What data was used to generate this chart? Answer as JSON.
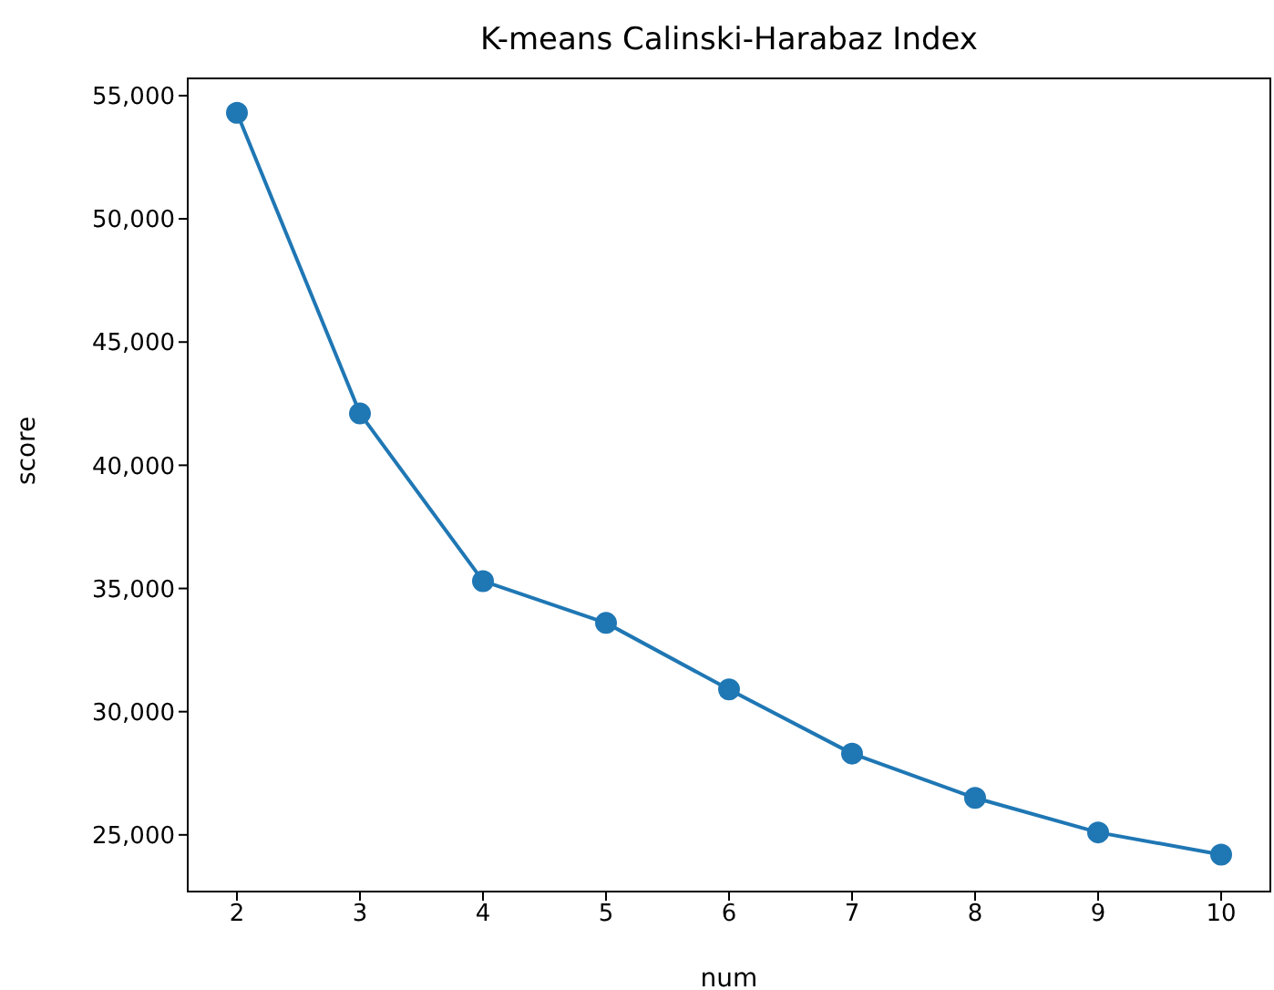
{
  "chart_data": {
    "type": "line",
    "title": "K-means Calinski-Harabaz Index",
    "xlabel": "num",
    "ylabel": "score",
    "x": [
      2,
      3,
      4,
      5,
      6,
      7,
      8,
      9,
      10
    ],
    "series": [
      {
        "color": "#1f77b4",
        "values": [
          54300,
          42100,
          35300,
          33600,
          30900,
          28300,
          26500,
          25100,
          24200
        ]
      }
    ],
    "marker": "circle",
    "line_style": "solid",
    "grid": false,
    "legend": false,
    "xlim": [
      1.6,
      10.4
    ],
    "xticks": [
      2,
      3,
      4,
      5,
      6,
      7,
      8,
      9,
      10
    ],
    "ylim": [
      22700,
      55700
    ],
    "yticks": [
      {
        "value": 25000,
        "label": "25,000"
      },
      {
        "value": 30000,
        "label": "30,000"
      },
      {
        "value": 35000,
        "label": "35,000"
      },
      {
        "value": 40000,
        "label": "40,000"
      },
      {
        "value": 45000,
        "label": "45,000"
      },
      {
        "value": 50000,
        "label": "50,000"
      },
      {
        "value": 55000,
        "label": "55,000"
      }
    ]
  }
}
